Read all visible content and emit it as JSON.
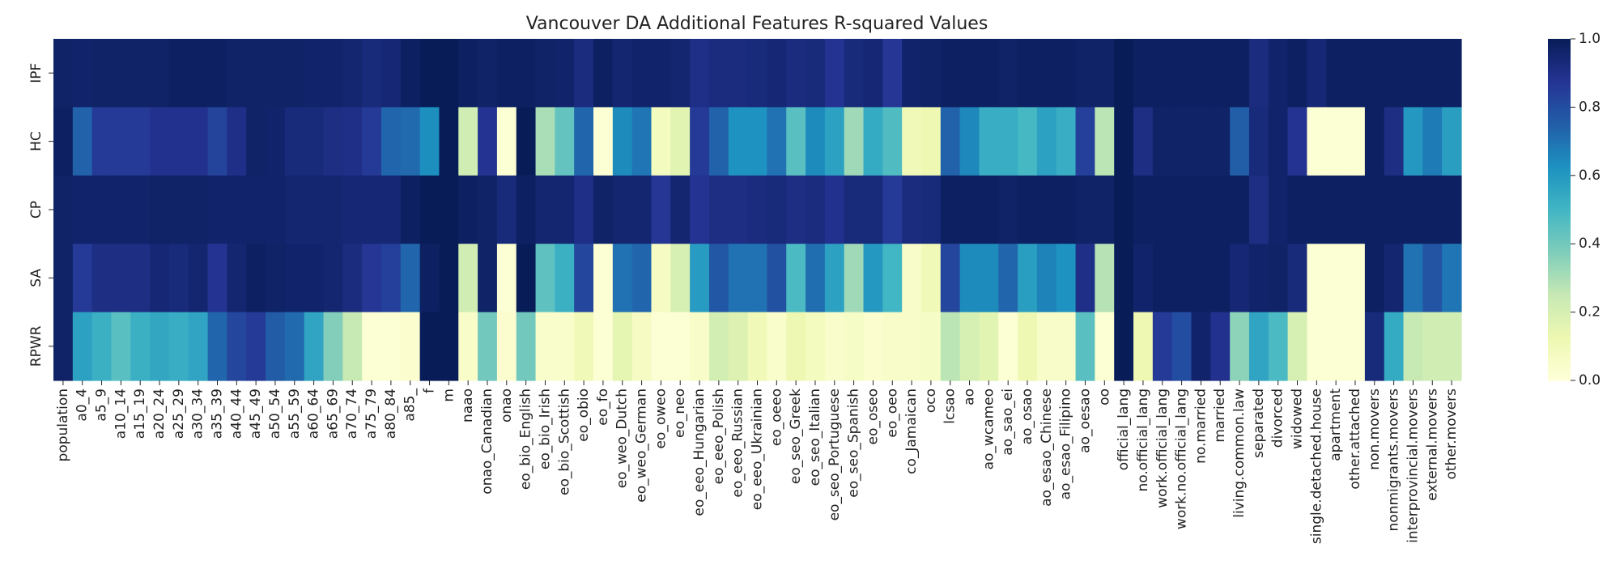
{
  "chart_data": {
    "type": "heatmap",
    "title": "Vancouver DA Additional Features R-squared Values",
    "xlabel": "",
    "ylabel": "",
    "rows": [
      "IPF",
      "HC",
      "CP",
      "SA",
      "RPWR"
    ],
    "columns": [
      "population",
      "a0_4",
      "a5_9",
      "a10_14",
      "a15_19",
      "a20_24",
      "a25_29",
      "a30_34",
      "a35_39",
      "a40_44",
      "a45_49",
      "a50_54",
      "a55_59",
      "a60_64",
      "a65_69",
      "a70_74",
      "a75_79",
      "a80_84",
      "a85_",
      "f",
      "m",
      "naao",
      "onao_Canadian",
      "onao",
      "eo_bio_English",
      "eo_bio_Irish",
      "eo_bio_Scottish",
      "eo_obio",
      "eo_fo",
      "eo_weo_Dutch",
      "eo_weo_German",
      "eo_oweo",
      "eo_neo",
      "eo_eeo_Hungarian",
      "eo_eeo_Polish",
      "eo_eeo_Russian",
      "eo_eeo_Ukrainian",
      "eo_oeeo",
      "eo_seo_Greek",
      "eo_seo_Italian",
      "eo_seo_Portuguese",
      "eo_seo_Spanish",
      "eo_oseo",
      "eo_oeo",
      "co_Jamaican",
      "oco",
      "lcsao",
      "ao",
      "ao_wcameo",
      "ao_sao_ei",
      "ao_osao",
      "ao_esao_Chinese",
      "ao_esao_Filipino",
      "ao_oesao",
      "oo",
      "official_lang",
      "no.official_lang",
      "work.official_lang",
      "work.no.official_lang",
      "no.married",
      "married",
      "living.common.law",
      "separated",
      "divorced",
      "widowed",
      "single.detached.house",
      "apartment",
      "other.attached",
      "non.movers",
      "nonmigrants.movers",
      "interprovincial.movers",
      "external.movers",
      "other.movers"
    ],
    "values": [
      [
        0.97,
        0.96,
        0.97,
        0.97,
        0.97,
        0.97,
        0.98,
        0.98,
        0.98,
        0.97,
        0.97,
        0.97,
        0.97,
        0.96,
        0.96,
        0.95,
        0.93,
        0.94,
        0.98,
        1.0,
        1.0,
        0.98,
        0.97,
        0.98,
        0.98,
        0.97,
        0.96,
        0.92,
        0.98,
        0.95,
        0.96,
        0.96,
        0.95,
        0.9,
        0.92,
        0.92,
        0.93,
        0.94,
        0.92,
        0.93,
        0.88,
        0.93,
        0.94,
        0.87,
        0.96,
        0.97,
        0.98,
        0.98,
        0.98,
        0.97,
        0.98,
        0.98,
        0.98,
        0.97,
        0.97,
        1.0,
        0.98,
        0.98,
        0.98,
        0.98,
        0.98,
        0.98,
        0.92,
        0.96,
        0.98,
        0.94,
        0.98,
        0.98,
        0.98,
        0.98,
        0.98,
        0.98,
        0.98
      ],
      [
        0.98,
        0.74,
        0.86,
        0.86,
        0.86,
        0.89,
        0.89,
        0.89,
        0.83,
        0.9,
        0.97,
        0.96,
        0.93,
        0.93,
        0.91,
        0.9,
        0.86,
        0.73,
        0.72,
        0.63,
        1.0,
        0.22,
        0.88,
        0.02,
        1.0,
        0.3,
        0.43,
        0.73,
        0.02,
        0.64,
        0.69,
        0.08,
        0.16,
        0.86,
        0.74,
        0.62,
        0.62,
        0.7,
        0.45,
        0.64,
        0.57,
        0.32,
        0.54,
        0.47,
        0.1,
        0.12,
        0.74,
        0.65,
        0.53,
        0.53,
        0.49,
        0.57,
        0.53,
        0.84,
        0.27,
        1.0,
        0.91,
        0.97,
        0.97,
        0.97,
        0.97,
        0.75,
        0.93,
        0.96,
        0.88,
        0.02,
        0.02,
        0.02,
        0.98,
        0.91,
        0.6,
        0.68,
        0.58
      ],
      [
        0.97,
        0.96,
        0.96,
        0.96,
        0.96,
        0.97,
        0.97,
        0.97,
        0.96,
        0.96,
        0.96,
        0.96,
        0.95,
        0.95,
        0.95,
        0.94,
        0.94,
        0.94,
        0.98,
        1.0,
        1.0,
        0.98,
        0.97,
        0.93,
        0.98,
        0.95,
        0.95,
        0.9,
        0.97,
        0.95,
        0.95,
        0.87,
        0.95,
        0.88,
        0.91,
        0.91,
        0.92,
        0.93,
        0.91,
        0.92,
        0.89,
        0.93,
        0.93,
        0.86,
        0.92,
        0.93,
        0.98,
        0.98,
        0.98,
        0.97,
        0.98,
        0.98,
        0.98,
        0.97,
        0.97,
        1.0,
        0.98,
        0.98,
        0.98,
        0.98,
        0.98,
        0.98,
        0.91,
        0.96,
        0.98,
        0.98,
        0.98,
        0.98,
        0.98,
        0.98,
        0.98,
        0.98,
        0.98
      ],
      [
        0.97,
        0.86,
        0.91,
        0.91,
        0.91,
        0.94,
        0.93,
        0.95,
        0.88,
        0.95,
        0.98,
        0.97,
        0.96,
        0.96,
        0.95,
        0.92,
        0.87,
        0.84,
        0.73,
        0.98,
        1.0,
        0.22,
        0.97,
        0.02,
        1.0,
        0.44,
        0.52,
        0.82,
        0.02,
        0.7,
        0.73,
        0.07,
        0.2,
        0.59,
        0.77,
        0.7,
        0.7,
        0.79,
        0.48,
        0.71,
        0.57,
        0.32,
        0.6,
        0.5,
        0.05,
        0.1,
        0.82,
        0.64,
        0.64,
        0.73,
        0.58,
        0.66,
        0.62,
        0.9,
        0.28,
        1.0,
        0.96,
        0.98,
        0.98,
        0.98,
        0.98,
        0.94,
        0.96,
        0.97,
        0.93,
        0.02,
        0.02,
        0.02,
        0.98,
        0.95,
        0.7,
        0.78,
        0.69
      ],
      [
        0.97,
        0.57,
        0.52,
        0.45,
        0.52,
        0.55,
        0.53,
        0.56,
        0.73,
        0.82,
        0.86,
        0.76,
        0.72,
        0.56,
        0.37,
        0.25,
        0.02,
        0.02,
        0.03,
        1.0,
        1.0,
        0.05,
        0.4,
        0.03,
        0.4,
        0.04,
        0.04,
        0.1,
        0.02,
        0.15,
        0.07,
        0.02,
        0.02,
        0.05,
        0.21,
        0.18,
        0.1,
        0.04,
        0.12,
        0.08,
        0.04,
        0.06,
        0.03,
        0.05,
        0.05,
        0.06,
        0.27,
        0.2,
        0.16,
        0.02,
        0.12,
        0.05,
        0.05,
        0.45,
        0.02,
        1.0,
        0.12,
        0.86,
        0.8,
        0.96,
        0.89,
        0.35,
        0.56,
        0.48,
        0.2,
        0.02,
        0.02,
        0.02,
        0.93,
        0.54,
        0.25,
        0.22,
        0.22
      ]
    ],
    "vmin": 0.0,
    "vmax": 1.0,
    "colormap": "YlGnBu",
    "colorbar": {
      "ticks": [
        0.0,
        0.2,
        0.4,
        0.6,
        0.8,
        1.0
      ],
      "tick_labels": [
        "0.0",
        "0.2",
        "0.4",
        "0.6",
        "0.8",
        "1.0"
      ]
    },
    "grid": false
  }
}
